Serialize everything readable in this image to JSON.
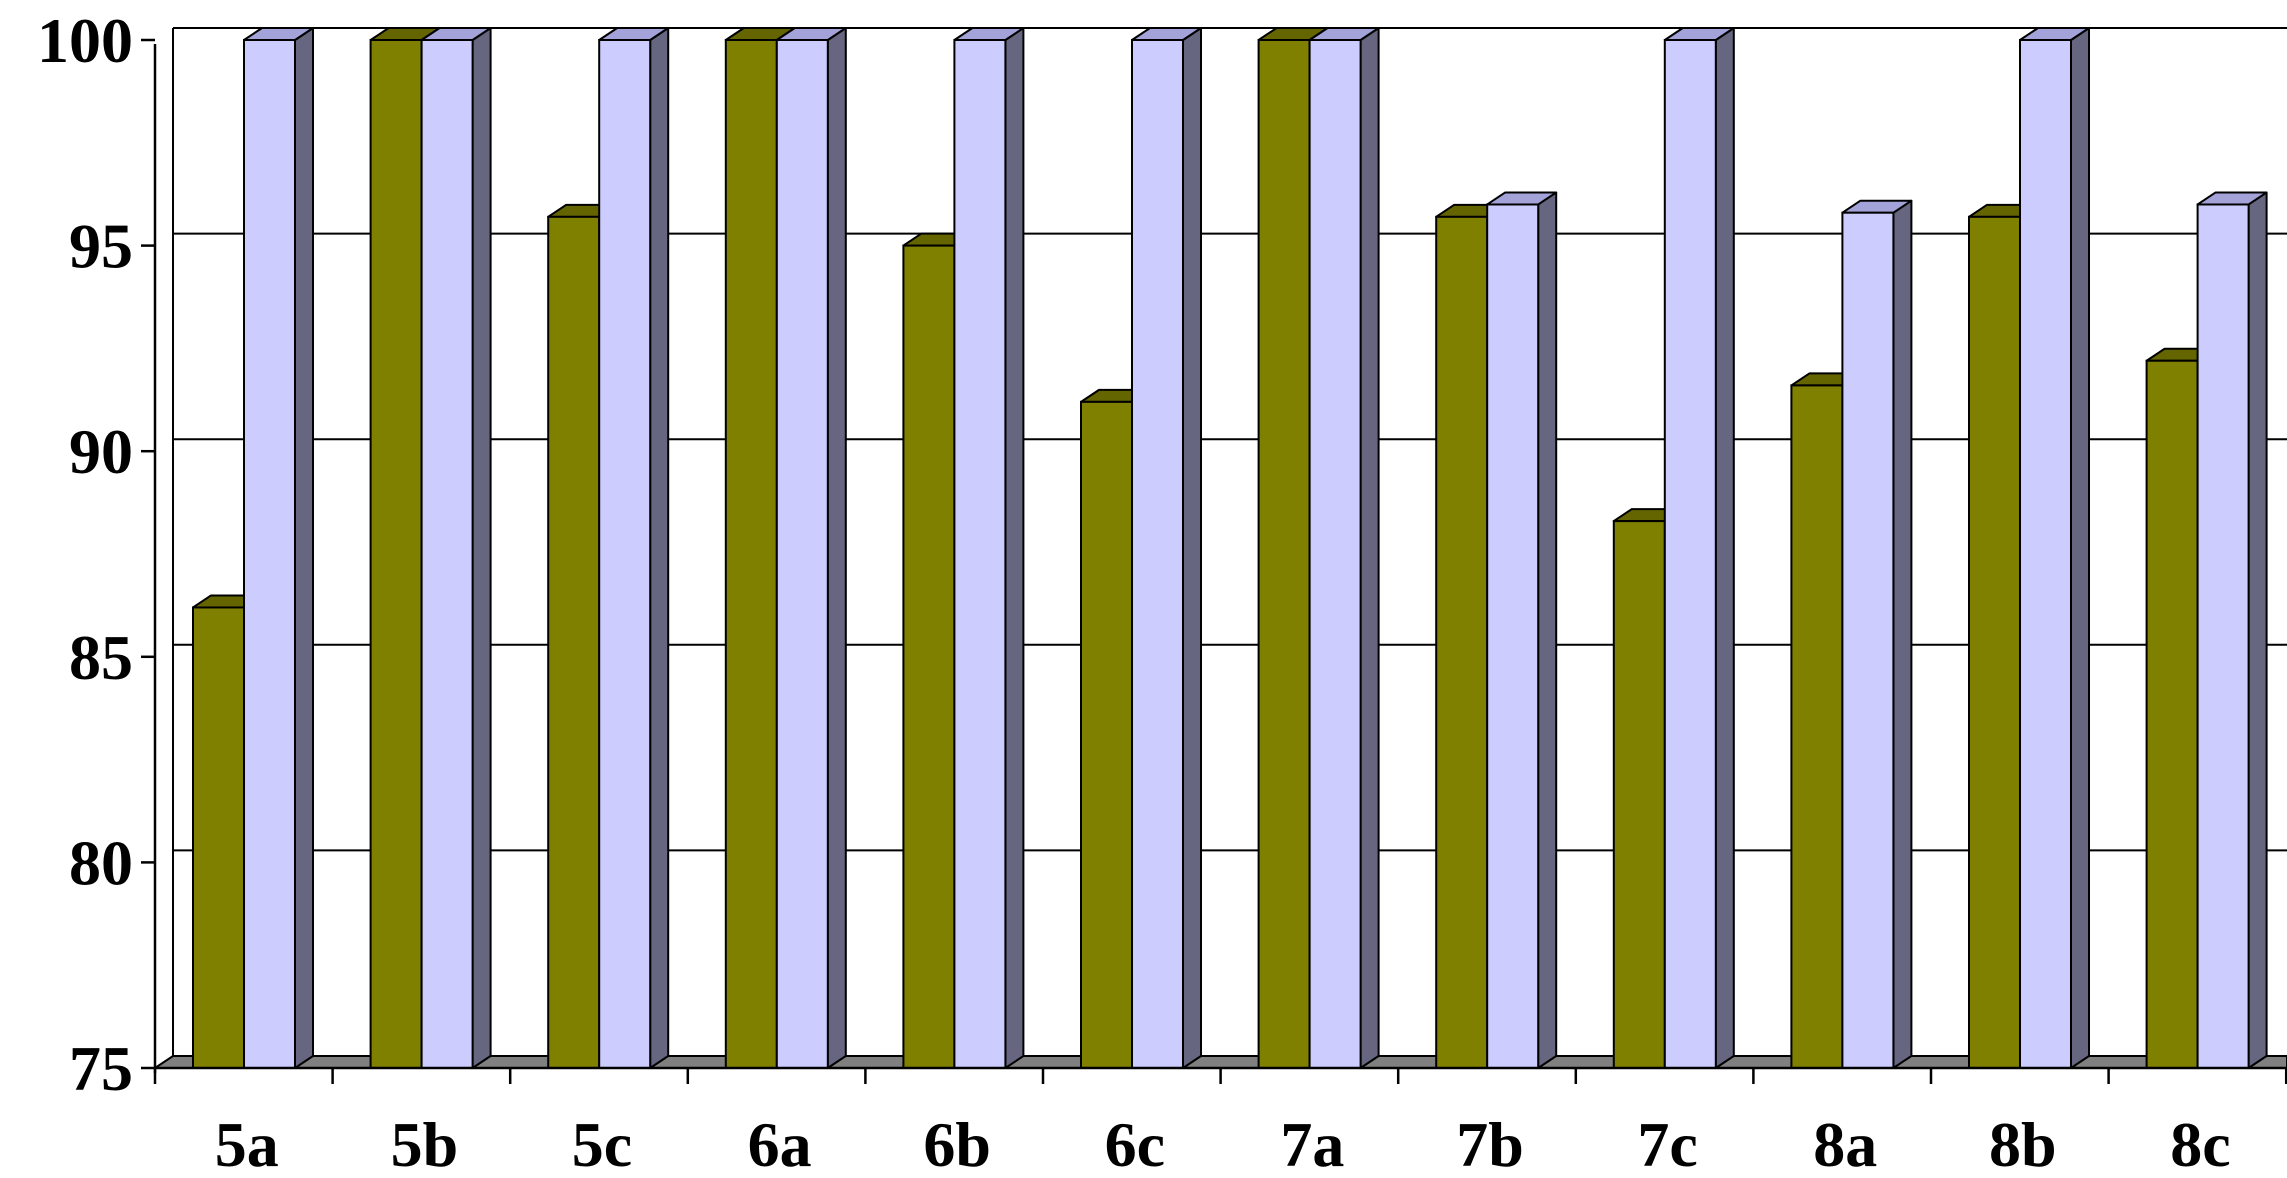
{
  "chart_data": {
    "type": "bar",
    "style": "3d-clustered-column",
    "categories": [
      "5a",
      "5b",
      "5c",
      "6a",
      "6b",
      "6c",
      "7a",
      "7b",
      "7c",
      "8a",
      "8b",
      "8c"
    ],
    "series": [
      {
        "values": [
          86.2,
          100,
          95.7,
          100,
          95.0,
          91.2,
          100,
          95.7,
          88.3,
          91.6,
          95.7,
          92.2
        ]
      },
      {
        "values": [
          100,
          100,
          100,
          100,
          100,
          100,
          100,
          96.0,
          100,
          95.8,
          100,
          96.0
        ]
      }
    ],
    "yticks": [
      "75",
      "80",
      "85",
      "90",
      "95",
      "100"
    ],
    "ylim": [
      75,
      100
    ],
    "grid": true,
    "legend": "none",
    "colors": {
      "series_0_front": "#808000",
      "series_0_top": "#656500",
      "series_0_side": "#4a4a00",
      "series_1_front": "#ccccff",
      "series_1_top": "#a3a3d9",
      "series_1_side": "#666680",
      "floor": "#808080",
      "grid": "#000000"
    }
  }
}
